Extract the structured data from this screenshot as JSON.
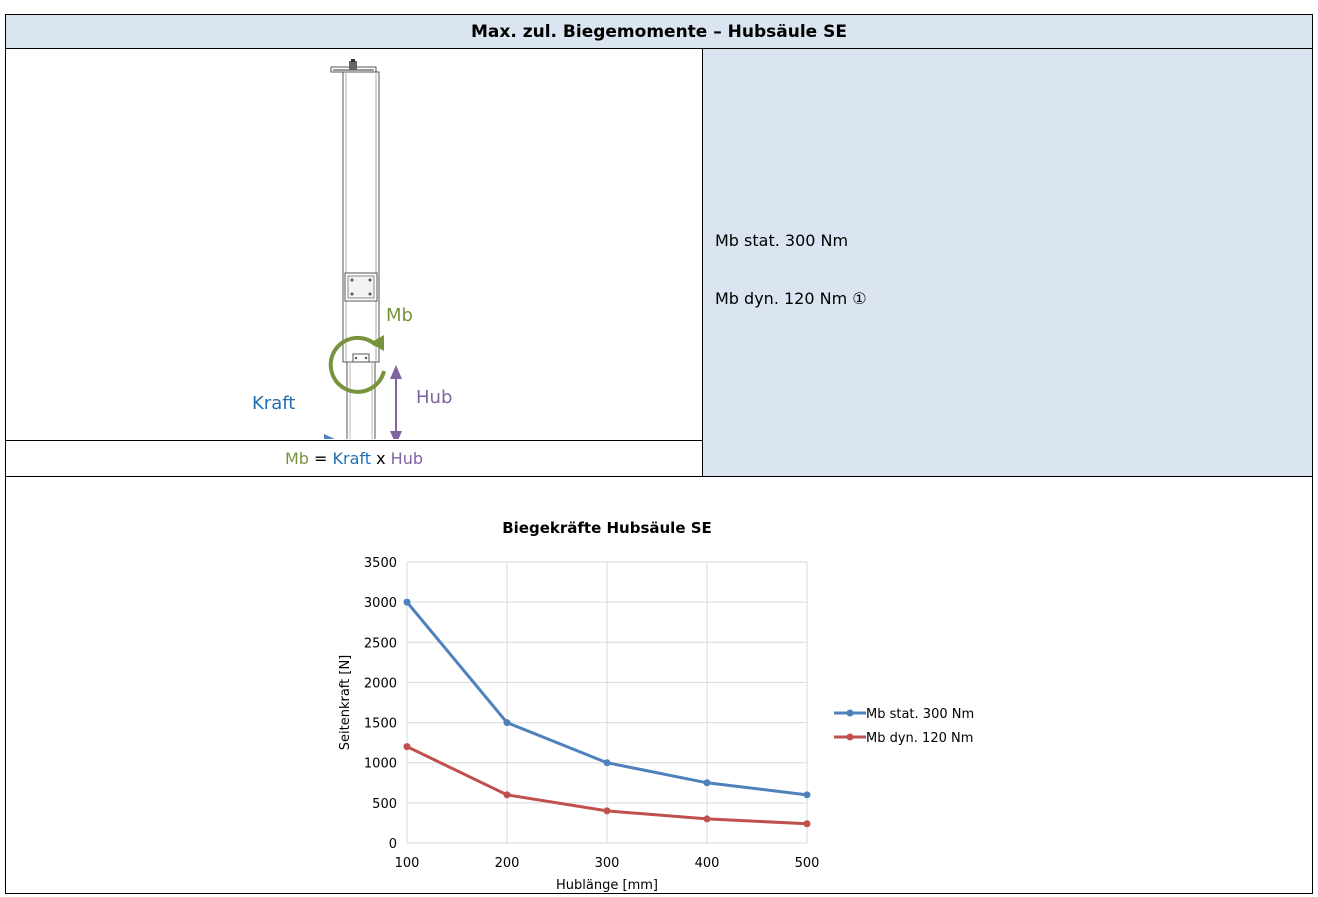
{
  "header": {
    "title": "Max. zul. Biegemomente – Hubsäule SE"
  },
  "figure": {
    "label_mb": "Mb",
    "label_kraft": "Kraft",
    "label_hub": "Hub"
  },
  "formula": {
    "mb": "Mb",
    "equals": " = ",
    "kraft": "Kraft",
    "times": " x ",
    "hub": "Hub"
  },
  "info": {
    "line1": "Mb stat. 300 Nm",
    "line2": "Mb dyn. 120 Nm ①"
  },
  "colors": {
    "header_bg": "#dbe5f1",
    "series_stat": "#4f81bd",
    "series_dyn": "#c0504d",
    "mb_green": "#77933c",
    "kraft_blue": "#1f6fb2",
    "hub_purple": "#8064a2"
  },
  "chart_data": {
    "type": "line",
    "title": "Biegekräfte Hubsäule SE",
    "xlabel": "Hublänge [mm]",
    "ylabel": "Seitenkraft [N]",
    "x": [
      100,
      200,
      300,
      400,
      500
    ],
    "xlim": [
      100,
      500
    ],
    "ylim": [
      0,
      3500
    ],
    "xticks": [
      "100",
      "200",
      "300",
      "400",
      "500"
    ],
    "yticks": [
      "0",
      "500",
      "1000",
      "1500",
      "2000",
      "2500",
      "3000",
      "3500"
    ],
    "grid": true,
    "legend": "right",
    "series": [
      {
        "name": "Mb stat. 300 Nm",
        "values": [
          3000,
          1500,
          1000,
          750,
          600
        ],
        "color": "#4f81bd"
      },
      {
        "name": "Mb dyn. 120 Nm",
        "values": [
          1200,
          600,
          400,
          300,
          240
        ],
        "color": "#c0504d"
      }
    ]
  }
}
